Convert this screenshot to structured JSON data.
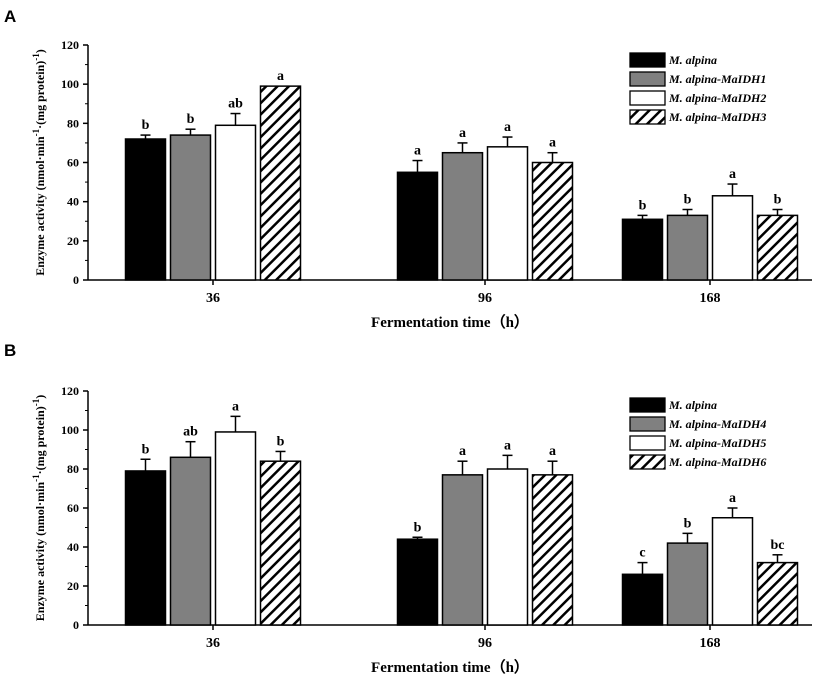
{
  "colors": {
    "series": [
      "#000000",
      "#808080",
      "#ffffff",
      "hatch"
    ],
    "stroke": "#000000"
  },
  "chart_data": [
    {
      "type": "bar",
      "panel": "A",
      "categories": [
        "36",
        "96",
        "168"
      ],
      "series": [
        {
          "name": "M. alpina",
          "values": [
            72,
            55,
            31
          ],
          "errors": [
            2,
            6,
            2
          ],
          "letters": [
            "b",
            "a",
            "b"
          ]
        },
        {
          "name": "M. alpina-MaIDH1",
          "values": [
            74,
            65,
            33
          ],
          "errors": [
            3,
            5,
            3
          ],
          "letters": [
            "b",
            "a",
            "b"
          ]
        },
        {
          "name": "M. alpina-MaIDH2",
          "values": [
            79,
            68,
            43
          ],
          "errors": [
            6,
            5,
            6
          ],
          "letters": [
            "ab",
            "a",
            "a"
          ]
        },
        {
          "name": "M. alpina-MaIDH3",
          "values": [
            99,
            60,
            33
          ],
          "errors": [
            0,
            5,
            3
          ],
          "letters": [
            "a",
            "a",
            "b"
          ]
        }
      ],
      "title": "",
      "xlabel": "Fermentation time（h）",
      "ylabel_main": "Enzyme activity (nmol·min",
      "ylabel_sup1": "-1",
      "ylabel_mid": "·(mg protein)",
      "ylabel_sup2": "-1",
      "ylabel_end": ")",
      "ylim": [
        0,
        120
      ],
      "yticks": [
        0,
        20,
        40,
        60,
        80,
        100,
        120
      ],
      "legend_position": "top-right",
      "grid": false
    },
    {
      "type": "bar",
      "panel": "B",
      "categories": [
        "36",
        "96",
        "168"
      ],
      "series": [
        {
          "name": "M. alpina",
          "values": [
            79,
            44,
            26
          ],
          "errors": [
            6,
            1,
            6
          ],
          "letters": [
            "b",
            "b",
            "c"
          ]
        },
        {
          "name": "M. alpina-MaIDH4",
          "values": [
            86,
            77,
            42
          ],
          "errors": [
            8,
            7,
            5
          ],
          "letters": [
            "ab",
            "a",
            "b"
          ]
        },
        {
          "name": "M. alpina-MaIDH5",
          "values": [
            99,
            80,
            55
          ],
          "errors": [
            8,
            7,
            5
          ],
          "letters": [
            "a",
            "a",
            "a"
          ]
        },
        {
          "name": "M. alpina-MaIDH6",
          "values": [
            84,
            77,
            32
          ],
          "errors": [
            5,
            7,
            4
          ],
          "letters": [
            "b",
            "a",
            "bc"
          ]
        }
      ],
      "title": "",
      "xlabel": "Fermentation time（h）",
      "ylabel_main": "Enzyme activity (nmol·min",
      "ylabel_sup1": "-1",
      "ylabel_mid": "·(mg protein)",
      "ylabel_sup2": "-1",
      "ylabel_end": ")",
      "ylim": [
        0,
        120
      ],
      "yticks": [
        0,
        20,
        40,
        60,
        80,
        100,
        120
      ],
      "legend_position": "top-right",
      "grid": false
    }
  ]
}
